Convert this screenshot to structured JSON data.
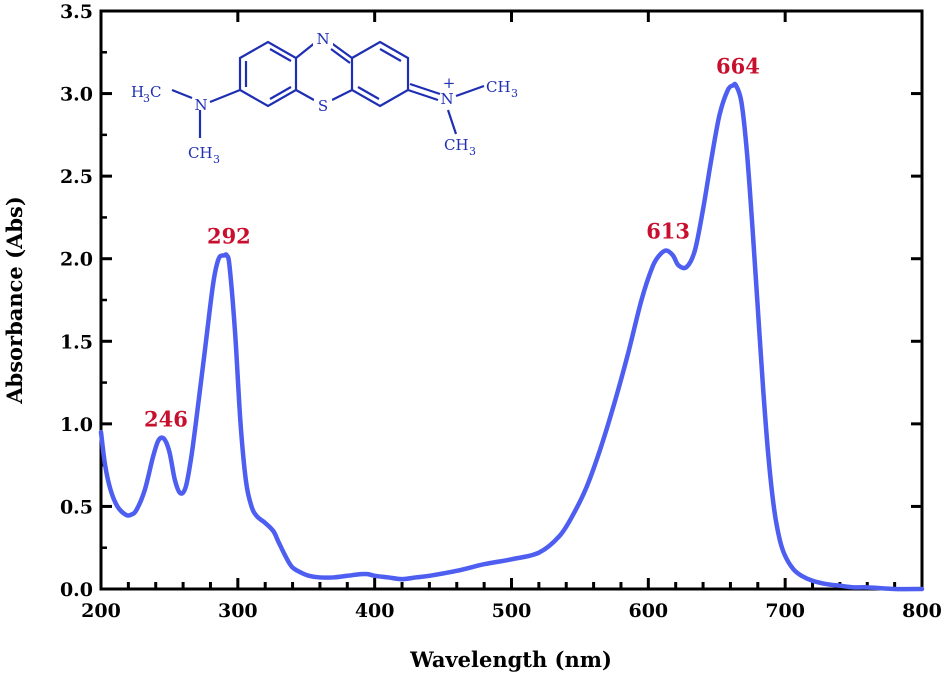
{
  "chart_data": {
    "type": "line",
    "xlabel": "Wavelength (nm)",
    "ylabel": "Absorbance (Abs)",
    "xlim": [
      200,
      800
    ],
    "ylim": [
      0.0,
      3.5
    ],
    "x_ticks": [
      "200",
      "300",
      "400",
      "500",
      "600",
      "700",
      "800"
    ],
    "y_ticks": [
      "0.0",
      "0.5",
      "1.0",
      "1.5",
      "2.0",
      "2.5",
      "3.0",
      "3.5"
    ],
    "grid": false,
    "line_color": "#4d5ef0",
    "annotation_color": "#c8102e",
    "series": [
      {
        "x": [
          200,
          203,
          207,
          212,
          218,
          222,
          226,
          232,
          238,
          242,
          246,
          250,
          254,
          258,
          262,
          266,
          270,
          276,
          282,
          286,
          290,
          292,
          294,
          298,
          302,
          306,
          310,
          314,
          320,
          326,
          330,
          336,
          340,
          346,
          352,
          360,
          370,
          380,
          390,
          395,
          400,
          410,
          420,
          430,
          440,
          460,
          480,
          500,
          520,
          535,
          545,
          555,
          565,
          575,
          585,
          595,
          603,
          608,
          613,
          618,
          622,
          628,
          634,
          640,
          646,
          652,
          658,
          662,
          664,
          668,
          672,
          676,
          680,
          684,
          688,
          692,
          696,
          700,
          706,
          712,
          720,
          730,
          740,
          750,
          760,
          780,
          800
        ],
        "y": [
          0.95,
          0.75,
          0.6,
          0.5,
          0.45,
          0.45,
          0.48,
          0.6,
          0.8,
          0.9,
          0.91,
          0.83,
          0.66,
          0.58,
          0.62,
          0.8,
          1.05,
          1.45,
          1.85,
          2.0,
          2.02,
          2.02,
          1.95,
          1.55,
          1.0,
          0.65,
          0.5,
          0.44,
          0.4,
          0.35,
          0.28,
          0.18,
          0.13,
          0.1,
          0.08,
          0.07,
          0.07,
          0.08,
          0.09,
          0.09,
          0.08,
          0.07,
          0.06,
          0.07,
          0.08,
          0.11,
          0.15,
          0.18,
          0.22,
          0.32,
          0.45,
          0.62,
          0.85,
          1.12,
          1.42,
          1.75,
          1.95,
          2.02,
          2.05,
          2.02,
          1.96,
          1.95,
          2.05,
          2.3,
          2.6,
          2.87,
          3.02,
          3.05,
          3.05,
          2.95,
          2.65,
          2.2,
          1.7,
          1.2,
          0.78,
          0.48,
          0.3,
          0.2,
          0.12,
          0.08,
          0.05,
          0.03,
          0.02,
          0.01,
          0.01,
          0.0,
          0.0
        ]
      }
    ],
    "annotations": [
      {
        "text": "246",
        "x": 246,
        "y": 0.91
      },
      {
        "text": "292",
        "x": 292,
        "y": 2.02
      },
      {
        "text": "613",
        "x": 613,
        "y": 2.05
      },
      {
        "text": "664",
        "x": 664,
        "y": 3.05
      }
    ]
  },
  "molecule": {
    "atoms": {
      "n_top": "N",
      "s_bottom": "S",
      "n_left": "N",
      "n_right": "N",
      "plus": "+",
      "ch": "CH",
      "h": "H",
      "c": "C",
      "sub3": "3"
    }
  }
}
